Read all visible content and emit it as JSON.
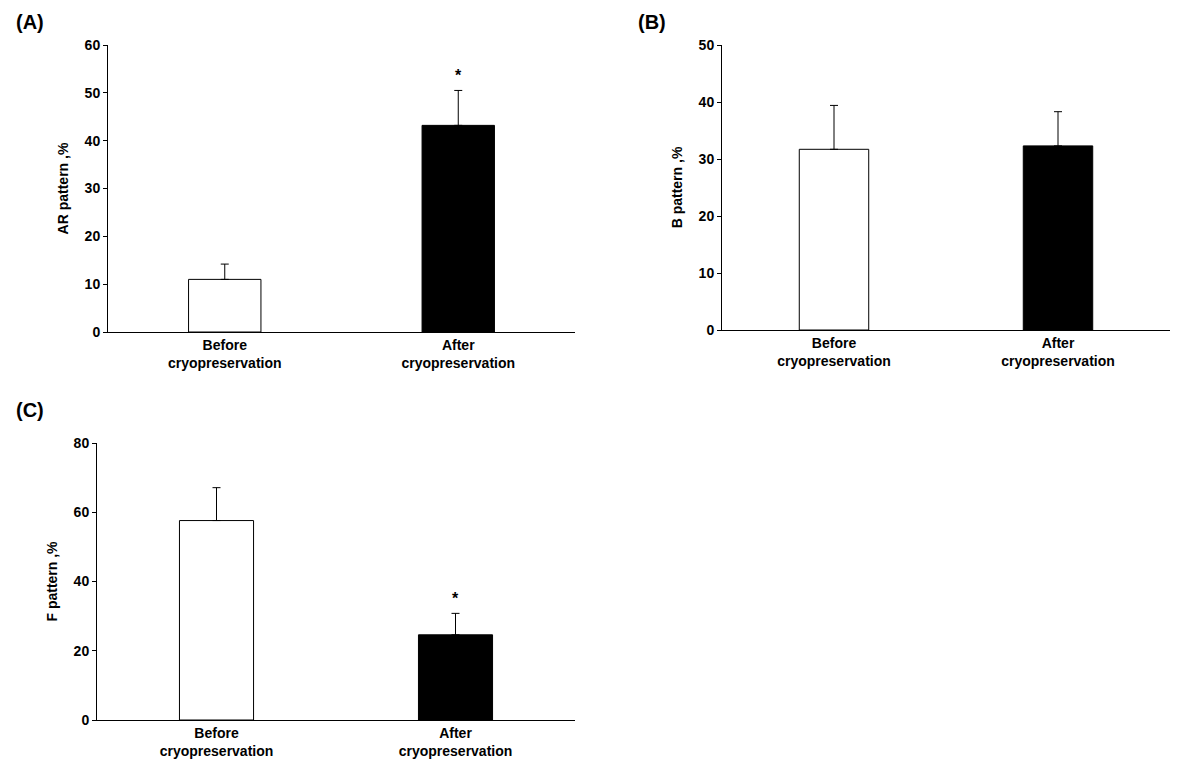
{
  "chart_data": [
    {
      "type": "bar",
      "title": "(A)",
      "y_label": "AR pattern ,%",
      "categories": [
        "Before\ncryopreservation",
        "After\ncryopreservation"
      ],
      "values": [
        11,
        43.2
      ],
      "errors": [
        3.2,
        7.3
      ],
      "colors": [
        "#ffffff",
        "#000000"
      ],
      "ylim": [
        0,
        60
      ],
      "yticks": [
        0,
        10,
        20,
        30,
        40,
        50,
        60
      ],
      "grid": false,
      "annotations": [
        {
          "category": "After\ncryopreservation",
          "text": "*"
        }
      ]
    },
    {
      "type": "bar",
      "title": "(B)",
      "y_label": "B pattern ,%",
      "categories": [
        "Before\ncryopreservation",
        "After\ncryopreservation"
      ],
      "values": [
        31.7,
        32.3
      ],
      "errors": [
        7.7,
        6
      ],
      "colors": [
        "#ffffff",
        "#000000"
      ],
      "ylim": [
        0,
        50
      ],
      "yticks": [
        0,
        10,
        20,
        30,
        40,
        50
      ],
      "grid": false
    },
    {
      "type": "bar",
      "title": "(C)",
      "y_label": "F pattern ,%",
      "categories": [
        "Before\ncryopreservation",
        "After\ncryopreservation"
      ],
      "values": [
        57.6,
        24.6
      ],
      "errors": [
        9.5,
        6.2
      ],
      "colors": [
        "#ffffff",
        "#000000"
      ],
      "ylim": [
        0,
        80
      ],
      "yticks": [
        0,
        20,
        40,
        60,
        80
      ],
      "grid": false,
      "annotations": [
        {
          "category": "After\ncryopreservation",
          "text": "*"
        }
      ]
    }
  ]
}
